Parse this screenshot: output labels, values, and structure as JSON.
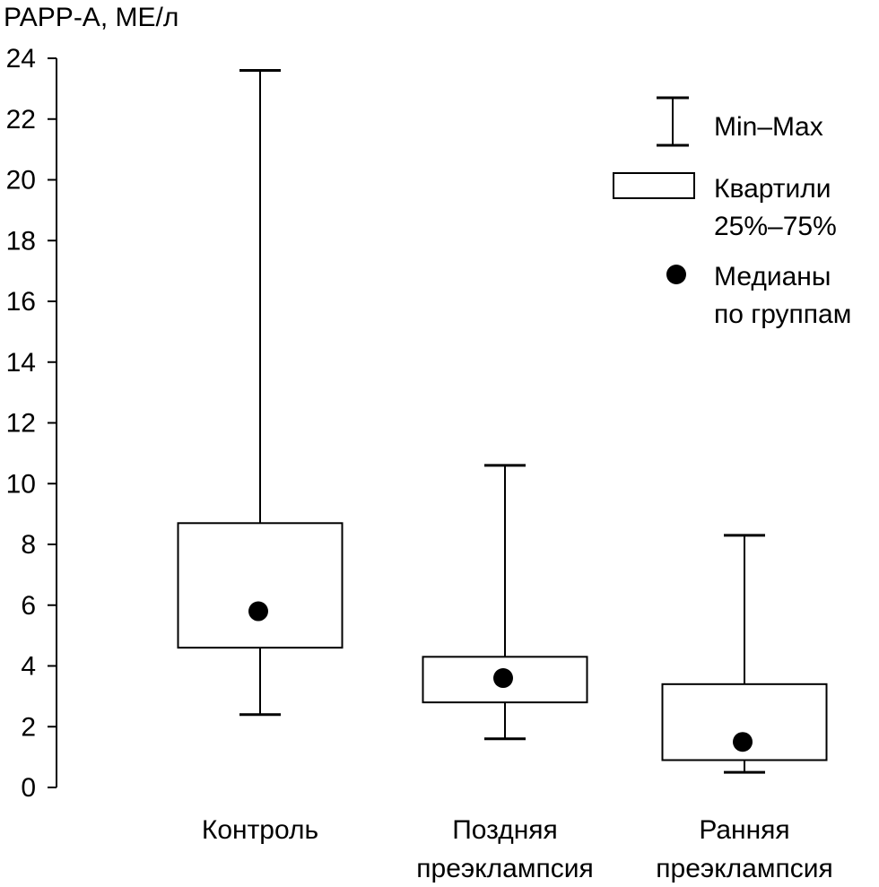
{
  "chart_data": {
    "type": "boxplot",
    "ylabel": "PAPP-A, МЕ/л",
    "ylim": [
      0,
      24
    ],
    "yticks": [
      "0",
      "2",
      "4",
      "6",
      "8",
      "10",
      "12",
      "14",
      "16",
      "18",
      "20",
      "22",
      "24"
    ],
    "categories": [
      {
        "lines": [
          "Контроль"
        ],
        "min": 2.4,
        "q1": 4.6,
        "median": 5.8,
        "q3": 8.7,
        "max": 23.6
      },
      {
        "lines": [
          "Поздняя",
          "преэклампсия"
        ],
        "min": 1.6,
        "q1": 2.8,
        "median": 3.6,
        "q3": 4.3,
        "max": 10.6
      },
      {
        "lines": [
          "Ранняя",
          "преэклампсия"
        ],
        "min": 0.5,
        "q1": 0.9,
        "median": 1.5,
        "q3": 3.4,
        "max": 8.3
      }
    ],
    "legend": {
      "position": "top-right",
      "whisker": [
        "Min–Max"
      ],
      "box": [
        "Квартили",
        "25%–75%"
      ],
      "median": [
        "Медианы",
        "по группам"
      ]
    },
    "grid": false
  },
  "colors": {
    "ink": "#000000",
    "box_fill": "#ffffff"
  }
}
